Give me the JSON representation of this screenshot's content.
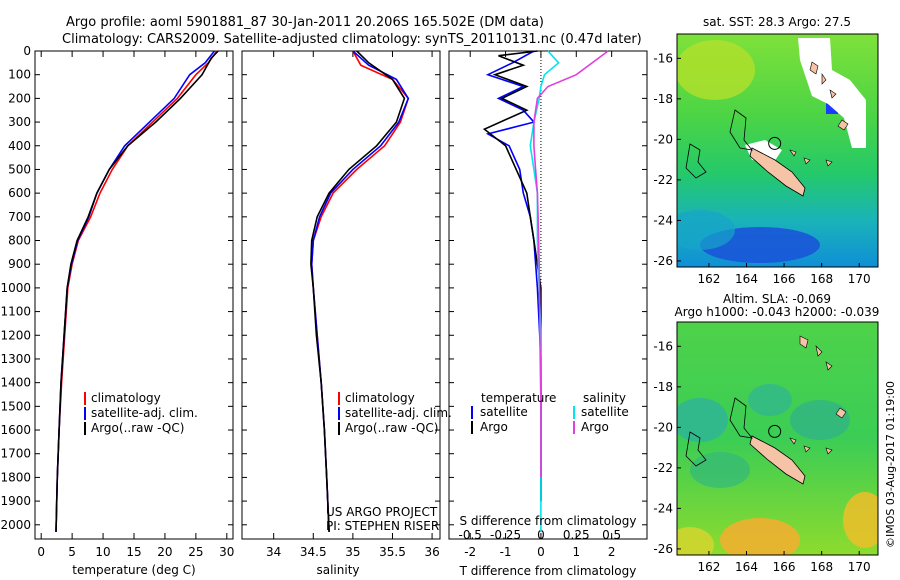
{
  "header": {
    "title_line1": "Argo profile: aoml 5901881_87 30-Jan-2011 20.206S 165.502E (DM data)",
    "title_line2": "Climatology: CARS2009. Satellite-adjusted climatology: synTS_20110131.nc (0.47d later)"
  },
  "credits": {
    "project_line1": "US ARGO PROJECT",
    "project_line2": "PI: STEPHEN RISER",
    "imos_stamp": "©IMOS 03-Aug-2017 01:19:00"
  },
  "chart_data": [
    {
      "type": "line",
      "id": "temperature",
      "xlabel": "temperature (deg C)",
      "xlim": [
        -1,
        31
      ],
      "ylim": [
        2060,
        0
      ],
      "xticks": [
        0,
        5,
        10,
        15,
        20,
        25,
        30
      ],
      "yticks": [
        0,
        100,
        200,
        300,
        400,
        500,
        600,
        700,
        800,
        900,
        1000,
        1100,
        1200,
        1300,
        1400,
        1500,
        1600,
        1700,
        1800,
        1900,
        2000
      ],
      "legend": [
        "climatology",
        "satellite-adj. clim.",
        "Argo(..raw -QC)"
      ],
      "series": [
        {
          "name": "climatology",
          "color": "#ff0000",
          "x": [
            28.4,
            27.0,
            25.0,
            22.0,
            18.0,
            14.0,
            11.5,
            9.5,
            8.0,
            6.0,
            5.0,
            4.3,
            3.8,
            3.3,
            2.9,
            2.6,
            2.4
          ],
          "y": [
            0,
            50,
            100,
            200,
            300,
            400,
            500,
            600,
            700,
            800,
            900,
            1000,
            1200,
            1400,
            1600,
            1800,
            2030
          ]
        },
        {
          "name": "satellite-adj. clim.",
          "color": "#0000ff",
          "x": [
            28.0,
            26.5,
            24.0,
            21.5,
            17.5,
            13.5,
            11.0,
            9.0,
            7.7,
            5.9,
            4.9,
            4.2,
            3.7,
            3.2,
            2.9,
            2.6,
            2.4
          ],
          "y": [
            0,
            50,
            100,
            200,
            300,
            400,
            500,
            600,
            700,
            800,
            900,
            1000,
            1200,
            1400,
            1600,
            1800,
            2030
          ]
        },
        {
          "name": "Argo(..raw -QC)",
          "color": "#000000",
          "x": [
            28.6,
            27.5,
            26.0,
            22.5,
            18.5,
            14.0,
            11.0,
            9.0,
            7.6,
            5.8,
            4.8,
            4.2,
            3.7,
            3.2,
            2.9,
            2.6,
            2.4
          ],
          "y": [
            0,
            30,
            100,
            200,
            300,
            400,
            500,
            600,
            700,
            800,
            900,
            1000,
            1200,
            1400,
            1600,
            1800,
            2030
          ]
        }
      ]
    },
    {
      "type": "line",
      "id": "salinity",
      "xlabel": "salinity",
      "xlim": [
        33.6,
        36.1
      ],
      "ylim": [
        2060,
        0
      ],
      "xticks": [
        34,
        34.5,
        35,
        35.5,
        36
      ],
      "legend": [
        "climatology",
        "satellite-adj. clim.",
        "Argo(..raw -QC)"
      ],
      "series": [
        {
          "name": "climatology",
          "color": "#ff0000",
          "x": [
            35.0,
            35.1,
            35.5,
            35.7,
            35.6,
            35.4,
            35.05,
            34.75,
            34.6,
            34.5,
            34.48,
            34.5,
            34.55,
            34.6,
            34.64,
            34.67,
            34.7
          ],
          "y": [
            0,
            60,
            120,
            200,
            300,
            400,
            500,
            600,
            700,
            800,
            900,
            1000,
            1200,
            1400,
            1600,
            1800,
            2030
          ]
        },
        {
          "name": "satellite-adj. clim.",
          "color": "#0000ff",
          "x": [
            35.0,
            35.2,
            35.55,
            35.7,
            35.58,
            35.35,
            35.0,
            34.72,
            34.58,
            34.5,
            34.48,
            34.5,
            34.55,
            34.6,
            34.64,
            34.67,
            34.7
          ],
          "y": [
            0,
            60,
            120,
            200,
            300,
            400,
            500,
            600,
            700,
            800,
            900,
            1000,
            1200,
            1400,
            1600,
            1800,
            2030
          ]
        },
        {
          "name": "Argo(..raw -QC)",
          "color": "#000000",
          "x": [
            35.05,
            35.2,
            35.5,
            35.65,
            35.55,
            35.3,
            34.95,
            34.7,
            34.55,
            34.48,
            34.47,
            34.5,
            34.54,
            34.6,
            34.64,
            34.67,
            34.7
          ],
          "y": [
            0,
            50,
            120,
            200,
            300,
            400,
            500,
            600,
            700,
            800,
            900,
            1000,
            1200,
            1400,
            1600,
            1800,
            2030
          ]
        }
      ]
    },
    {
      "type": "line",
      "id": "difference",
      "xlabel": "T difference from climatology",
      "xlabel_top": "S difference from climatology",
      "xlim": [
        -2.6,
        3.0
      ],
      "ylim": [
        2060,
        0
      ],
      "xticks": [
        -2,
        -1,
        0,
        1,
        2
      ],
      "xticks_top_values": [
        -0.5,
        -0.25,
        0,
        0.25,
        0.5
      ],
      "xticks_top_labels": [
        "-0.5",
        "-0.25",
        "0",
        "0.25",
        "0.5"
      ],
      "legend_headers": [
        "temperature",
        "salinity"
      ],
      "legend": [
        "satellite",
        "Argo",
        "satellite",
        "Argo"
      ],
      "series": [
        {
          "name": "satellite",
          "group": "temperature",
          "color": "#0000ff",
          "x": [
            -0.2,
            -0.8,
            -1.5,
            -0.5,
            -1.2,
            -0.5,
            -0.2,
            -1.5,
            -0.9,
            -0.6,
            -0.5,
            -0.3,
            -0.2,
            -0.1,
            0.0,
            0.0,
            0.0
          ],
          "y": [
            0,
            50,
            100,
            150,
            200,
            250,
            300,
            350,
            400,
            500,
            600,
            700,
            800,
            1000,
            1300,
            1600,
            1900
          ]
        },
        {
          "name": "Argo",
          "group": "temperature",
          "color": "#000000",
          "x": [
            -0.1,
            -1.2,
            -0.5,
            -1.3,
            -0.4,
            -1.1,
            -0.4,
            -1.6,
            -1.0,
            -0.7,
            -0.4,
            -0.3,
            -0.2,
            0.0,
            0.0,
            0.0,
            0.0
          ],
          "y": [
            0,
            20,
            60,
            100,
            150,
            200,
            250,
            330,
            400,
            500,
            600,
            700,
            800,
            1000,
            1300,
            1600,
            1900
          ]
        },
        {
          "name": "satellite",
          "group": "salinity",
          "color": "#00e5ee",
          "x": [
            0.2,
            0.5,
            0.1,
            0.0,
            -0.05,
            -0.2,
            -0.3,
            -0.2,
            -0.1,
            -0.1,
            0.0,
            0.0,
            0.0
          ],
          "y": [
            0,
            50,
            100,
            150,
            200,
            300,
            400,
            500,
            600,
            800,
            1200,
            1600,
            2030
          ]
        },
        {
          "name": "Argo",
          "group": "salinity",
          "color": "#e040e0",
          "x": [
            1.9,
            1.0,
            0.2,
            -0.1,
            -0.2,
            -0.2,
            -0.15,
            -0.1,
            -0.08,
            -0.05,
            -0.03,
            0.0,
            0.0
          ],
          "y": [
            0,
            100,
            150,
            200,
            300,
            400,
            500,
            600,
            700,
            900,
            1200,
            1500,
            1800
          ]
        }
      ]
    },
    {
      "type": "heatmap",
      "id": "sst-map",
      "title": "sat. SST: 28.3 Argo: 27.5",
      "xlim": [
        160.3,
        171.0
      ],
      "ylim": [
        -26.3,
        -14.8
      ],
      "xticks": [
        162,
        164,
        166,
        168,
        170
      ],
      "yticks": [
        -16,
        -18,
        -20,
        -22,
        -24,
        -26
      ],
      "marker": {
        "lon": 165.5,
        "lat": -20.2
      }
    },
    {
      "type": "heatmap",
      "id": "sla-map",
      "title_line1": "Altim. SLA: -0.069",
      "title_line2": "Argo h1000: -0.043 h2000: -0.039",
      "xlim": [
        160.3,
        171.0
      ],
      "ylim": [
        -26.3,
        -14.8
      ],
      "xticks": [
        162,
        164,
        166,
        168,
        170
      ],
      "yticks": [
        -16,
        -18,
        -20,
        -22,
        -24,
        -26
      ],
      "marker": {
        "lon": 165.5,
        "lat": -20.2
      }
    }
  ]
}
